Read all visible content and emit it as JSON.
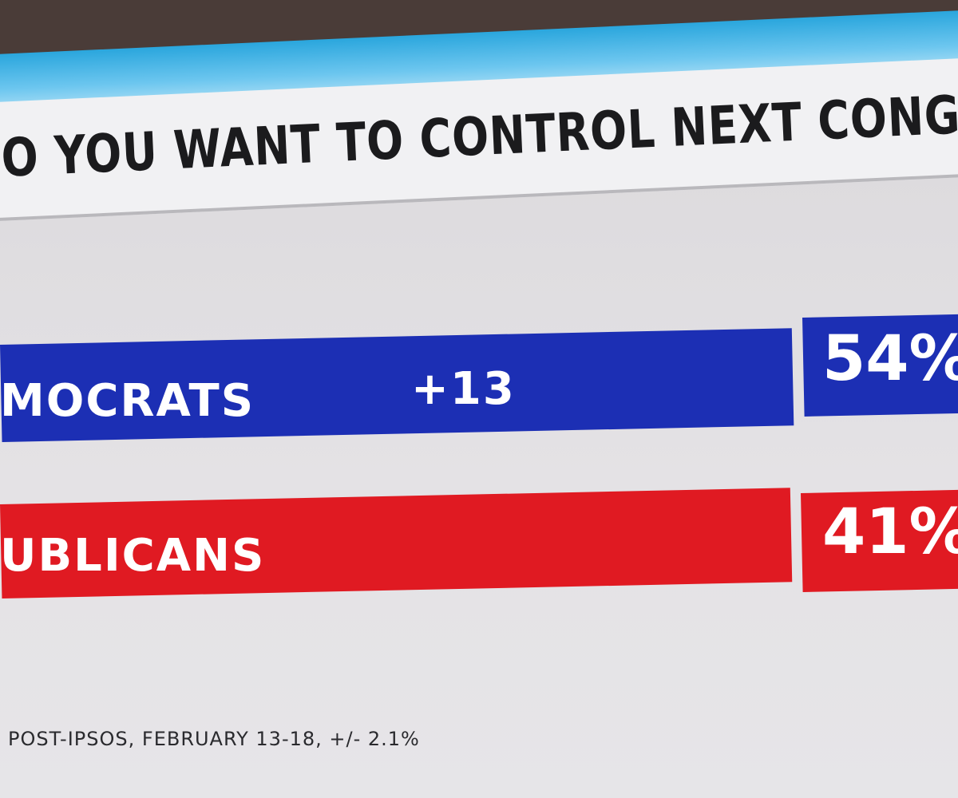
{
  "header": {
    "title": "O YOU WANT TO CONTROL NEXT CONGRE"
  },
  "rows": [
    {
      "label": "MOCRATS",
      "margin": "+13",
      "value": "54%"
    },
    {
      "label": "UBLICANS",
      "value": "41%"
    }
  ],
  "footer": {
    "source": "POST-IPSOS, FEBRUARY 13-18, +/- 2.1%"
  }
}
